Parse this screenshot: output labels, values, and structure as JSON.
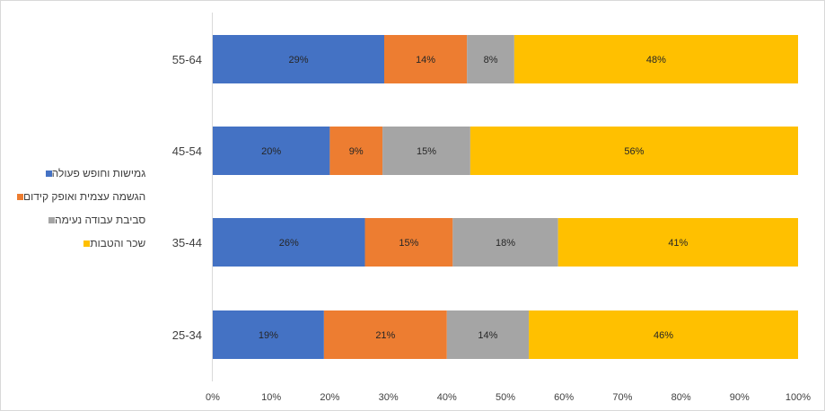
{
  "chart_data": {
    "type": "bar",
    "orientation": "horizontal",
    "stacked": "percent",
    "categories": [
      "25-34",
      "35-44",
      "45-54",
      "55-64"
    ],
    "series": [
      {
        "name": "גמישות וחופש פעולה",
        "color": "#4472C4",
        "values": [
          19,
          26,
          20,
          29
        ]
      },
      {
        "name": "הגשמה עצמית ואופק קידום",
        "color": "#ED7D31",
        "values": [
          21,
          15,
          9,
          14
        ]
      },
      {
        "name": "סביבת עבודה נעימה",
        "color": "#A5A5A5",
        "values": [
          14,
          18,
          15,
          8
        ]
      },
      {
        "name": "שכר והטבות",
        "color": "#FFC000",
        "values": [
          46,
          41,
          56,
          48
        ]
      }
    ],
    "x_ticks": [
      "0%",
      "10%",
      "20%",
      "30%",
      "40%",
      "50%",
      "60%",
      "70%",
      "80%",
      "90%",
      "100%"
    ],
    "xlim": [
      0,
      100
    ],
    "legend_position": "left",
    "grid": false
  }
}
